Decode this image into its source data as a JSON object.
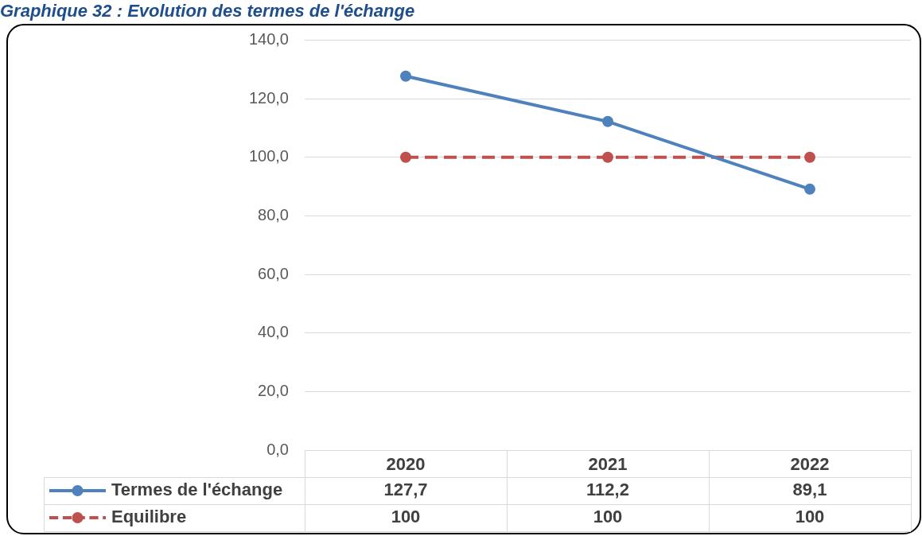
{
  "chart_data": {
    "type": "line",
    "title": "Graphique 32 : Evolution des termes de l'échange",
    "categories": [
      "2020",
      "2021",
      "2022"
    ],
    "series": [
      {
        "name": "Termes de l'échange",
        "color": "#4f81bd",
        "values": [
          127.7,
          112.2,
          89.1
        ],
        "value_labels": [
          "127,7",
          "112,2",
          "89,1"
        ]
      },
      {
        "name": "Equilibre",
        "color": "#c0504d",
        "values": [
          100,
          100,
          100
        ],
        "value_labels": [
          "100",
          "100",
          "100"
        ],
        "line_style": "dashed"
      }
    ],
    "ylim": [
      0,
      140
    ],
    "yticks": [
      {
        "value": 0,
        "label": "0,0"
      },
      {
        "value": 20,
        "label": "20,0"
      },
      {
        "value": 40,
        "label": "40,0"
      },
      {
        "value": 60,
        "label": "60,0"
      },
      {
        "value": 80,
        "label": "80,0"
      },
      {
        "value": 100,
        "label": "100,0"
      },
      {
        "value": 120,
        "label": "120,0"
      },
      {
        "value": 140,
        "label": "140,0"
      }
    ],
    "grid": "y",
    "legend": "bottom",
    "marker": "circle",
    "line_style": "solid"
  }
}
